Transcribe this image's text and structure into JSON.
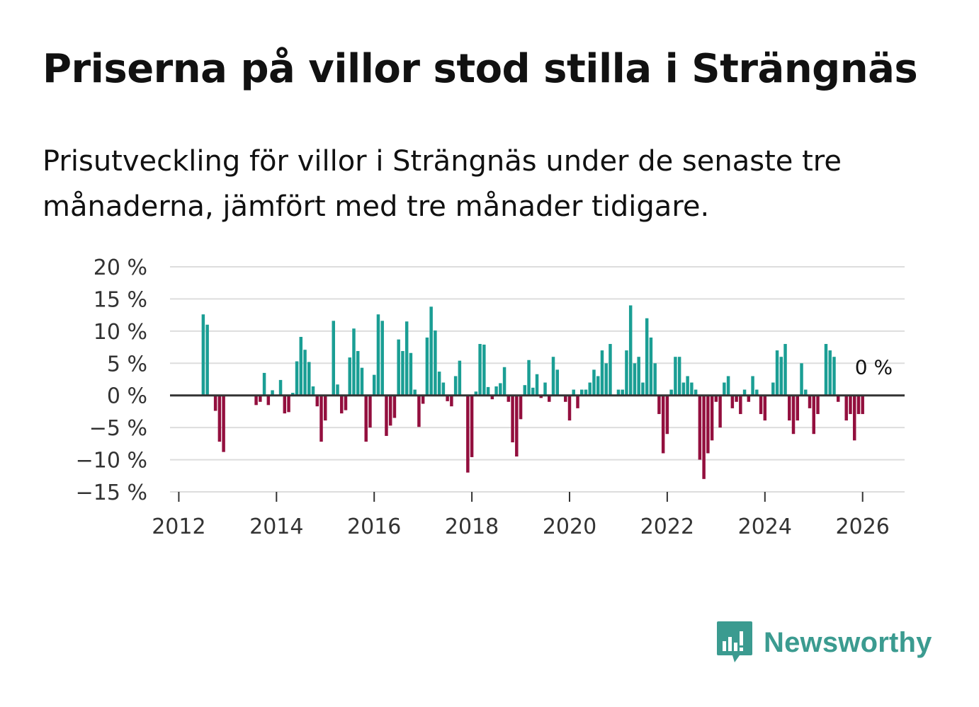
{
  "header": {
    "title": "Priserna på villor stod stilla i Strängnäs",
    "subtitle": "Prisutveckling för villor i Strängnäs under de senaste tre månaderna, jämfört med tre månader tidigare."
  },
  "brand": {
    "name": "Newsworthy"
  },
  "colors": {
    "positive": "#1a9e94",
    "negative": "#930f3e",
    "grid": "#dddddd",
    "zero": "#333333",
    "brand": "#3b9b90"
  },
  "chart_data": {
    "type": "bar",
    "title": "Priserna på villor stod stilla i Strängnäs",
    "xlabel": "",
    "ylabel": "",
    "ylim": [
      -15,
      20
    ],
    "xlim": [
      2011.82,
      2026.86
    ],
    "y_ticks": [
      20,
      15,
      10,
      5,
      0,
      -5,
      -10,
      -15
    ],
    "y_tick_labels": [
      "20 %",
      "15 %",
      "10 %",
      "5 %",
      "0 %",
      "−5 %",
      "−10 %",
      "−15 %"
    ],
    "x_ticks": [
      2012,
      2014,
      2016,
      2018,
      2020,
      2022,
      2024,
      2026
    ],
    "x_tick_labels": [
      "2012",
      "2014",
      "2016",
      "2018",
      "2020",
      "2022",
      "2024",
      "2026"
    ],
    "end_label": "0 %",
    "start": "2012-07",
    "frequency": "monthly",
    "values": [
      12.6,
      11.0,
      0,
      -2.4,
      -7.2,
      -8.8,
      0,
      0,
      0,
      0,
      0,
      0,
      0,
      -1.5,
      -1.0,
      3.5,
      -1.5,
      0.8,
      0,
      2.4,
      -2.8,
      -2.6,
      0.4,
      5.3,
      9.1,
      7.1,
      5.2,
      1.4,
      -1.7,
      -7.2,
      -3.9,
      0,
      11.6,
      1.7,
      -2.8,
      -2.3,
      5.9,
      10.4,
      6.9,
      4.3,
      -7.2,
      -5.0,
      3.2,
      12.6,
      11.6,
      -6.3,
      -4.7,
      -3.5,
      8.7,
      6.9,
      11.5,
      6.6,
      0.9,
      -4.9,
      -1.3,
      9.0,
      13.8,
      10.1,
      3.7,
      2.0,
      -0.9,
      -1.7,
      3.0,
      5.4,
      0,
      -12.0,
      -9.6,
      0.6,
      8.0,
      7.9,
      1.3,
      -0.6,
      1.4,
      1.9,
      4.4,
      -1.0,
      -7.3,
      -9.5,
      -3.7,
      1.6,
      5.5,
      1.2,
      3.3,
      -0.4,
      2.0,
      -1.0,
      6.0,
      4.0,
      0,
      -1.0,
      -3.9,
      0.9,
      -2.0,
      0.9,
      0.9,
      2.0,
      4.0,
      3.0,
      7.0,
      5.0,
      8.0,
      0,
      0.9,
      0.9,
      7.0,
      14.0,
      5.0,
      6.0,
      2.0,
      12.0,
      9.0,
      5.0,
      -2.9,
      -9.0,
      -6.0,
      0.9,
      6.0,
      6.0,
      2.0,
      3.0,
      2.0,
      0.9,
      -10.0,
      -13.0,
      -9.0,
      -7.0,
      -1.0,
      -5.0,
      2.0,
      3.0,
      -2.0,
      -1.0,
      -2.9,
      0.9,
      -1.0,
      3.0,
      0.9,
      -2.9,
      -3.9,
      0,
      2.0,
      7.0,
      6.0,
      8.0,
      -3.9,
      -6.0,
      -3.9,
      5.0,
      0.9,
      -2.0,
      -6.0,
      -2.9,
      0,
      8.0,
      7.0,
      6.0,
      -1.0,
      0,
      -3.9,
      -2.9,
      -7.0,
      -2.9,
      -2.9,
      0
    ]
  }
}
